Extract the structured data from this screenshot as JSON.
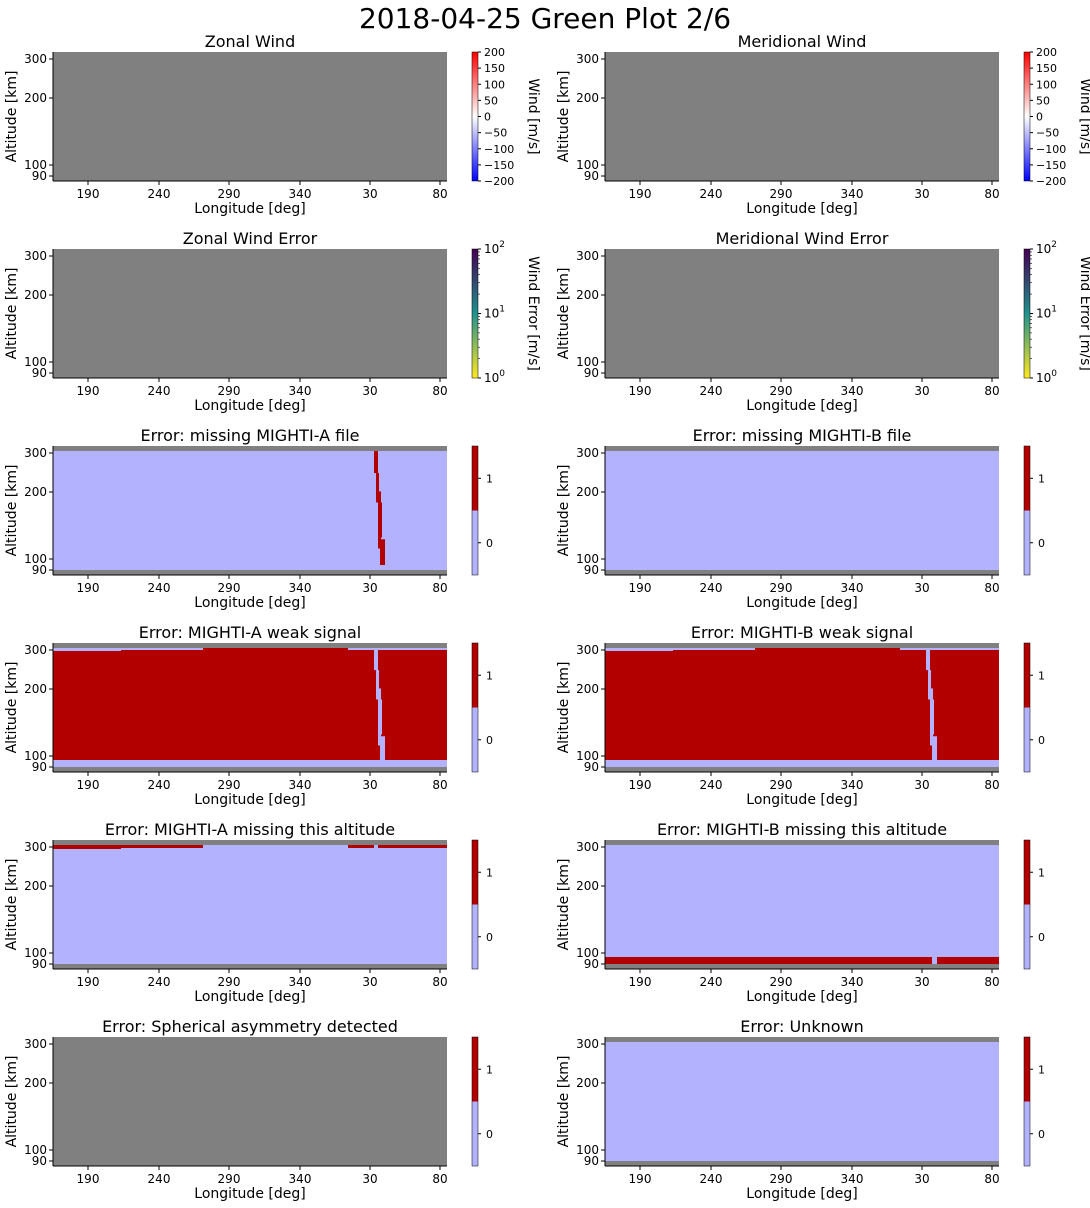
{
  "suptitle": "2018-04-25 Green Plot 2/6",
  "colors": {
    "missing": "#808080",
    "flag_off": "#b2b2ff",
    "flag_on": "#b20000",
    "wind_low": "#0000ff",
    "wind_mid": "#ffffff",
    "wind_high": "#ff0000",
    "err_low": "#fde725",
    "err_mid": "#21918c",
    "err_high": "#440154"
  },
  "chart_data": [
    {
      "id": "zonal-wind",
      "type": "heatmap",
      "title": "Zonal Wind",
      "xlabel": "Longitude [deg]",
      "ylabel": "Altitude [km]",
      "x_ticks": [
        "190",
        "240",
        "290",
        "340",
        "30",
        "80"
      ],
      "y_ticks": [
        "90",
        "100",
        "200",
        "300"
      ],
      "colorbar": {
        "kind": "diverging",
        "label": "Wind [m/s]",
        "ticks": [
          "200",
          "150",
          "100",
          "50",
          "0",
          "−50",
          "−100",
          "−150",
          "−200"
        ],
        "range": [
          -200,
          200
        ]
      },
      "content": "all-missing"
    },
    {
      "id": "meridional-wind",
      "type": "heatmap",
      "title": "Meridional Wind",
      "xlabel": "Longitude [deg]",
      "ylabel": "Altitude [km]",
      "x_ticks": [
        "190",
        "240",
        "290",
        "340",
        "30",
        "80"
      ],
      "y_ticks": [
        "90",
        "100",
        "200",
        "300"
      ],
      "colorbar": {
        "kind": "diverging",
        "label": "Wind [m/s]",
        "ticks": [
          "200",
          "150",
          "100",
          "50",
          "0",
          "−50",
          "−100",
          "−150",
          "−200"
        ],
        "range": [
          -200,
          200
        ]
      },
      "content": "all-missing"
    },
    {
      "id": "zonal-wind-error",
      "type": "heatmap",
      "title": "Zonal Wind Error",
      "xlabel": "Longitude [deg]",
      "ylabel": "Altitude [km]",
      "x_ticks": [
        "190",
        "240",
        "290",
        "340",
        "30",
        "80"
      ],
      "y_ticks": [
        "90",
        "100",
        "200",
        "300"
      ],
      "colorbar": {
        "kind": "log",
        "label": "Wind Error [m/s]",
        "ticks": [
          {
            "base": "10",
            "exp": "2"
          },
          {
            "base": "10",
            "exp": "1"
          },
          {
            "base": "10",
            "exp": "0"
          }
        ],
        "range": [
          1,
          100
        ]
      },
      "content": "all-missing"
    },
    {
      "id": "meridional-wind-error",
      "type": "heatmap",
      "title": "Meridional Wind Error",
      "xlabel": "Longitude [deg]",
      "ylabel": "Altitude [km]",
      "x_ticks": [
        "190",
        "240",
        "290",
        "340",
        "30",
        "80"
      ],
      "y_ticks": [
        "90",
        "100",
        "200",
        "300"
      ],
      "colorbar": {
        "kind": "log",
        "label": "Wind Error [m/s]",
        "ticks": [
          {
            "base": "10",
            "exp": "2"
          },
          {
            "base": "10",
            "exp": "1"
          },
          {
            "base": "10",
            "exp": "0"
          }
        ],
        "range": [
          1,
          100
        ]
      },
      "content": "all-missing"
    },
    {
      "id": "missing-a-file",
      "type": "heatmap",
      "title": "Error: missing MIGHTI-A file",
      "xlabel": "Longitude [deg]",
      "ylabel": "Altitude [km]",
      "x_ticks": [
        "190",
        "240",
        "290",
        "340",
        "30",
        "80"
      ],
      "y_ticks": [
        "90",
        "100",
        "200",
        "300"
      ],
      "colorbar": {
        "kind": "binary",
        "ticks": [
          "1",
          "0"
        ]
      },
      "content": "flags",
      "base": 0,
      "missing_top": true,
      "missing_bottom": true,
      "flag_notch": "on",
      "low_band": "none",
      "top_cap": "none"
    },
    {
      "id": "missing-b-file",
      "type": "heatmap",
      "title": "Error: missing MIGHTI-B file",
      "xlabel": "Longitude [deg]",
      "ylabel": "Altitude [km]",
      "x_ticks": [
        "190",
        "240",
        "290",
        "340",
        "30",
        "80"
      ],
      "y_ticks": [
        "90",
        "100",
        "200",
        "300"
      ],
      "colorbar": {
        "kind": "binary",
        "ticks": [
          "1",
          "0"
        ]
      },
      "content": "flags",
      "base": 0,
      "missing_top": true,
      "missing_bottom": true,
      "flag_notch": "none",
      "low_band": "none",
      "top_cap": "none"
    },
    {
      "id": "a-weak-signal",
      "type": "heatmap",
      "title": "Error: MIGHTI-A weak signal",
      "xlabel": "Longitude [deg]",
      "ylabel": "Altitude [km]",
      "x_ticks": [
        "190",
        "240",
        "290",
        "340",
        "30",
        "80"
      ],
      "y_ticks": [
        "90",
        "100",
        "200",
        "300"
      ],
      "colorbar": {
        "kind": "binary",
        "ticks": [
          "1",
          "0"
        ]
      },
      "content": "flags",
      "base": 1,
      "missing_top": true,
      "missing_bottom": true,
      "flag_notch": "off",
      "low_band": "off",
      "top_cap": "off"
    },
    {
      "id": "b-weak-signal",
      "type": "heatmap",
      "title": "Error: MIGHTI-B weak signal",
      "xlabel": "Longitude [deg]",
      "ylabel": "Altitude [km]",
      "x_ticks": [
        "190",
        "240",
        "290",
        "340",
        "30",
        "80"
      ],
      "y_ticks": [
        "90",
        "100",
        "200",
        "300"
      ],
      "colorbar": {
        "kind": "binary",
        "ticks": [
          "1",
          "0"
        ]
      },
      "content": "flags",
      "base": 1,
      "missing_top": true,
      "missing_bottom": true,
      "flag_notch": "off",
      "low_band": "off",
      "top_cap": "off"
    },
    {
      "id": "a-missing-altitude",
      "type": "heatmap",
      "title": "Error: MIGHTI-A missing this altitude",
      "xlabel": "Longitude [deg]",
      "ylabel": "Altitude [km]",
      "x_ticks": [
        "190",
        "240",
        "290",
        "340",
        "30",
        "80"
      ],
      "y_ticks": [
        "90",
        "100",
        "200",
        "300"
      ],
      "colorbar": {
        "kind": "binary",
        "ticks": [
          "1",
          "0"
        ]
      },
      "content": "flags",
      "base": 0,
      "missing_top": true,
      "missing_bottom": true,
      "flag_notch": "none",
      "low_band": "none",
      "top_cap": "on"
    },
    {
      "id": "b-missing-altitude",
      "type": "heatmap",
      "title": "Error: MIGHTI-B missing this altitude",
      "xlabel": "Longitude [deg]",
      "ylabel": "Altitude [km]",
      "x_ticks": [
        "190",
        "240",
        "290",
        "340",
        "30",
        "80"
      ],
      "y_ticks": [
        "90",
        "100",
        "200",
        "300"
      ],
      "colorbar": {
        "kind": "binary",
        "ticks": [
          "1",
          "0"
        ]
      },
      "content": "flags",
      "base": 0,
      "missing_top": true,
      "missing_bottom": true,
      "flag_notch": "none",
      "low_band": "on",
      "top_cap": "none"
    },
    {
      "id": "spherical-asymmetry",
      "type": "heatmap",
      "title": "Error: Spherical asymmetry detected",
      "xlabel": "Longitude [deg]",
      "ylabel": "Altitude [km]",
      "x_ticks": [
        "190",
        "240",
        "290",
        "340",
        "30",
        "80"
      ],
      "y_ticks": [
        "90",
        "100",
        "200",
        "300"
      ],
      "colorbar": {
        "kind": "binary",
        "ticks": [
          "1",
          "0"
        ]
      },
      "content": "all-missing"
    },
    {
      "id": "unknown",
      "type": "heatmap",
      "title": "Error: Unknown",
      "xlabel": "Longitude [deg]",
      "ylabel": "Altitude [km]",
      "x_ticks": [
        "190",
        "240",
        "290",
        "340",
        "30",
        "80"
      ],
      "y_ticks": [
        "90",
        "100",
        "200",
        "300"
      ],
      "colorbar": {
        "kind": "binary",
        "ticks": [
          "1",
          "0"
        ]
      },
      "content": "flags",
      "base": 0,
      "missing_top": true,
      "missing_bottom": true,
      "flag_notch": "none",
      "low_band": "none",
      "top_cap": "none"
    }
  ]
}
